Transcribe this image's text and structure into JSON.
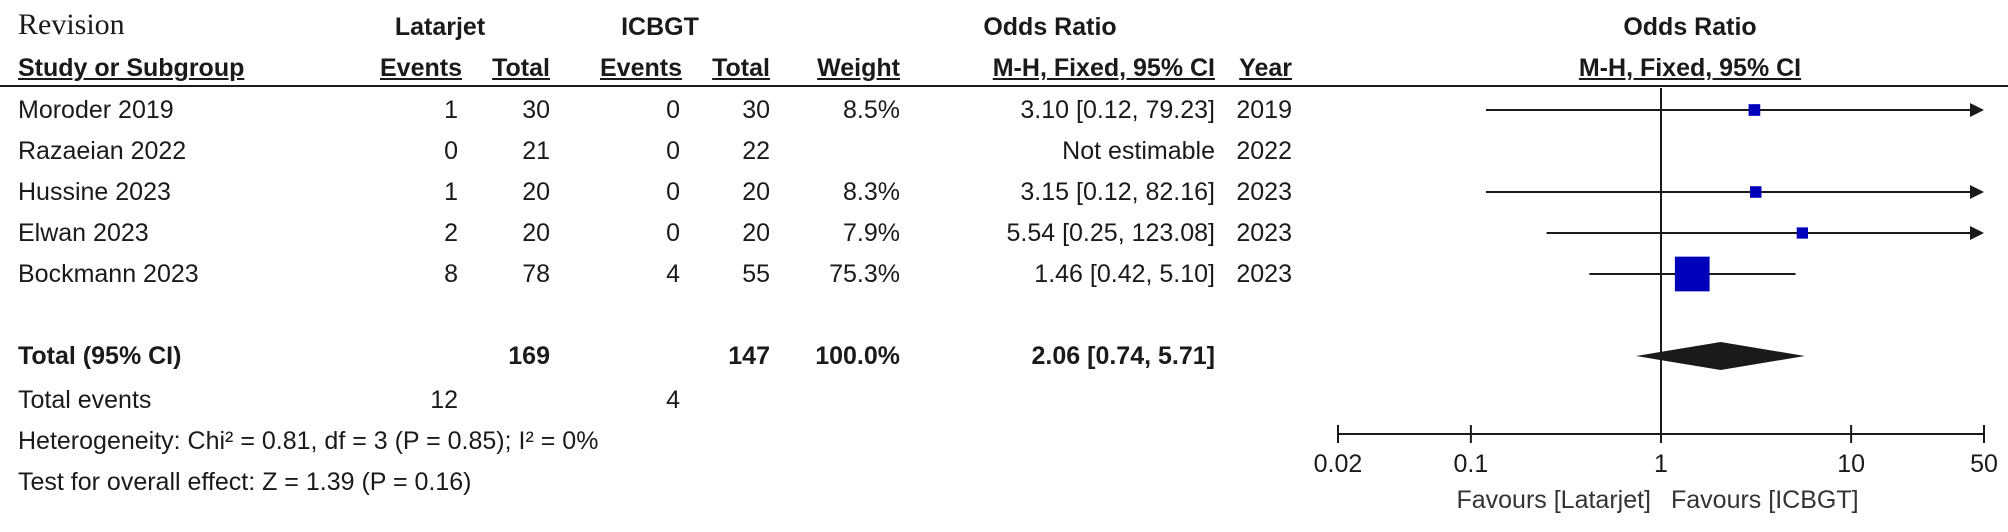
{
  "section_label": "Revision",
  "headers": {
    "study": "Study or Subgroup",
    "group1": "Latarjet",
    "group2": "ICBGT",
    "events": "Events",
    "total": "Total",
    "weight": "Weight",
    "or_title": "Odds Ratio",
    "or_method": "M-H, Fixed, 95% CI",
    "year": "Year",
    "plot_title": "Odds Ratio",
    "plot_method": "M-H, Fixed, 95% CI"
  },
  "studies": [
    {
      "study": "Moroder 2019",
      "e1": "1",
      "t1": "30",
      "e2": "0",
      "t2": "30",
      "weight": "8.5%",
      "ci_text": "3.10 [0.12, 79.23]",
      "year": "2019"
    },
    {
      "study": "Razaeian 2022",
      "e1": "0",
      "t1": "21",
      "e2": "0",
      "t2": "22",
      "weight": "",
      "ci_text": "Not estimable",
      "year": "2022"
    },
    {
      "study": "Hussine 2023",
      "e1": "1",
      "t1": "20",
      "e2": "0",
      "t2": "20",
      "weight": "8.3%",
      "ci_text": "3.15 [0.12, 82.16]",
      "year": "2023"
    },
    {
      "study": "Elwan 2023",
      "e1": "2",
      "t1": "20",
      "e2": "0",
      "t2": "20",
      "weight": "7.9%",
      "ci_text": "5.54 [0.25, 123.08]",
      "year": "2023"
    },
    {
      "study": "Bockmann 2023",
      "e1": "8",
      "t1": "78",
      "e2": "4",
      "t2": "55",
      "weight": "75.3%",
      "ci_text": "1.46 [0.42, 5.10]",
      "year": "2023"
    }
  ],
  "total": {
    "label": "Total (95% CI)",
    "t1": "169",
    "t2": "147",
    "weight": "100.0%",
    "ci_text": "2.06 [0.74, 5.71]"
  },
  "total_events": {
    "label": "Total events",
    "e1": "12",
    "e2": "4"
  },
  "heterogeneity": "Heterogeneity: Chi² = 0.81, df = 3 (P = 0.85); I² = 0%",
  "overall_effect": "Test for overall effect: Z = 1.39 (P = 0.16)",
  "axis": {
    "ticks": [
      0.02,
      0.1,
      1,
      10,
      50
    ],
    "tick_labels": [
      "0.02",
      "0.1",
      "1",
      "10",
      "50"
    ],
    "favours_left": "Favours [Latarjet]",
    "favours_right": "Favours [ICBGT]"
  },
  "colors": {
    "marker": "#0000bb",
    "ink": "#1a1a1a"
  },
  "chart_data": {
    "type": "forest",
    "scale": "log",
    "xlim": [
      0.02,
      50
    ],
    "reference": 1,
    "studies": [
      {
        "name": "Moroder 2019",
        "or": 3.1,
        "lo": 0.12,
        "hi": 79.23,
        "weight": 8.5
      },
      {
        "name": "Razaeian 2022",
        "or": null,
        "lo": null,
        "hi": null,
        "weight": null
      },
      {
        "name": "Hussine 2023",
        "or": 3.15,
        "lo": 0.12,
        "hi": 82.16,
        "weight": 8.3
      },
      {
        "name": "Elwan 2023",
        "or": 5.54,
        "lo": 0.25,
        "hi": 123.08,
        "weight": 7.9
      },
      {
        "name": "Bockmann 2023",
        "or": 1.46,
        "lo": 0.42,
        "hi": 5.1,
        "weight": 75.3
      }
    ],
    "pooled": {
      "or": 2.06,
      "lo": 0.74,
      "hi": 5.71
    }
  }
}
